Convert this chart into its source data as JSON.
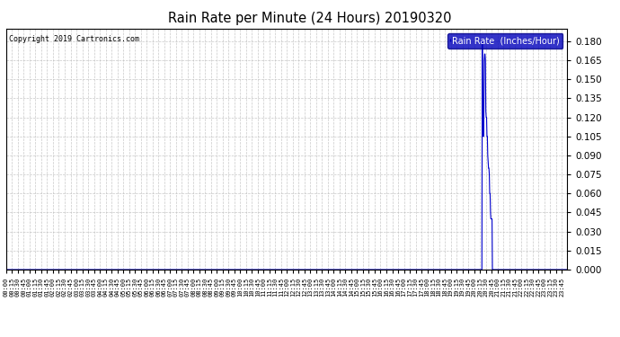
{
  "title": "Rain Rate per Minute (24 Hours) 20190320",
  "copyright": "Copyright 2019 Cartronics.com",
  "legend_label": "Rain Rate  (Inches/Hour)",
  "ylim": [
    0.0,
    0.19
  ],
  "yticks": [
    0.0,
    0.015,
    0.03,
    0.045,
    0.06,
    0.075,
    0.09,
    0.105,
    0.12,
    0.135,
    0.15,
    0.165,
    0.18
  ],
  "line_color": "#0000cc",
  "legend_bg": "#0000bb",
  "background_color": "#ffffff",
  "grid_color": "#bbbbbb",
  "total_minutes": 1440,
  "rain_data": [
    [
      1200,
      0.0
    ],
    [
      1201,
      0.0
    ],
    [
      1202,
      0.0
    ],
    [
      1203,
      0.0
    ],
    [
      1204,
      0.0
    ],
    [
      1205,
      0.0
    ],
    [
      1206,
      0.0
    ],
    [
      1207,
      0.0
    ],
    [
      1208,
      0.0
    ],
    [
      1209,
      0.0
    ],
    [
      1210,
      0.0
    ],
    [
      1211,
      0.0
    ],
    [
      1212,
      0.0
    ],
    [
      1213,
      0.0
    ],
    [
      1214,
      0.0
    ],
    [
      1215,
      0.0
    ],
    [
      1216,
      0.0
    ],
    [
      1217,
      0.0
    ],
    [
      1218,
      0.0
    ],
    [
      1219,
      0.0
    ],
    [
      1220,
      0.0
    ],
    [
      1221,
      0.18
    ],
    [
      1222,
      0.135
    ],
    [
      1223,
      0.12
    ],
    [
      1224,
      0.105
    ],
    [
      1225,
      0.12
    ],
    [
      1226,
      0.165
    ],
    [
      1227,
      0.17
    ],
    [
      1228,
      0.17
    ],
    [
      1229,
      0.165
    ],
    [
      1230,
      0.125
    ],
    [
      1231,
      0.12
    ],
    [
      1232,
      0.12
    ],
    [
      1233,
      0.105
    ],
    [
      1234,
      0.105
    ],
    [
      1235,
      0.09
    ],
    [
      1236,
      0.085
    ],
    [
      1237,
      0.08
    ],
    [
      1238,
      0.08
    ],
    [
      1239,
      0.075
    ],
    [
      1240,
      0.06
    ],
    [
      1241,
      0.06
    ],
    [
      1242,
      0.045
    ],
    [
      1243,
      0.04
    ],
    [
      1244,
      0.04
    ],
    [
      1245,
      0.04
    ],
    [
      1246,
      0.04
    ],
    [
      1247,
      0.0
    ],
    [
      1248,
      0.0
    ],
    [
      1249,
      0.0
    ],
    [
      1250,
      0.0
    ]
  ]
}
